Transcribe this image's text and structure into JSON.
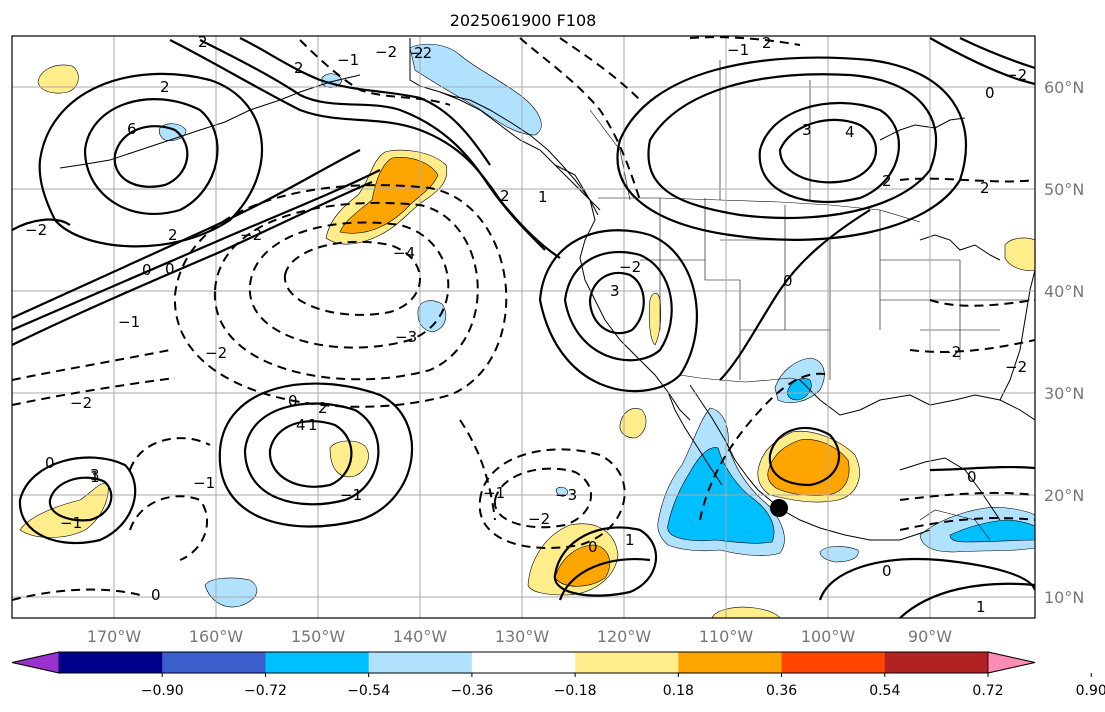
{
  "title": "2025061900 F108",
  "map": {
    "lat_labels": [
      "60°N",
      "50°N",
      "40°N",
      "30°N",
      "20°N",
      "10°N"
    ],
    "lon_labels": [
      "170°W",
      "160°W",
      "150°W",
      "140°W",
      "130°W",
      "120°W",
      "110°W",
      "100°W",
      "90°W"
    ],
    "marker": {
      "lon": -105.2,
      "lat": 18.9,
      "color": "#000000"
    }
  },
  "colorbar": {
    "colors": [
      "#9932cc",
      "#00008b",
      "#3a5fcd",
      "#00bfff",
      "#b0e2ff",
      "#ffffff",
      "#ffec8b",
      "#ffa500",
      "#ff4500",
      "#b22222",
      "#ff8cb4"
    ],
    "tick_labels": [
      "−0.90",
      "−0.72",
      "−0.54",
      "−0.36",
      "−0.18",
      "0.18",
      "0.36",
      "0.54",
      "0.72",
      "0.90"
    ]
  },
  "contour_labels": [
    "6",
    "4",
    "3",
    "2",
    "2",
    "1",
    "0",
    "0",
    "−1",
    "−2",
    "−2",
    "−3",
    "−4",
    "−2",
    "2",
    "−2",
    "−2",
    "2",
    "2",
    "−1",
    "3",
    "1",
    "−1",
    "−2",
    "2",
    "−1",
    "0",
    "1",
    "−2",
    "−3",
    "0",
    "0",
    "−1",
    "1",
    "0",
    "−1",
    "0",
    "−2",
    "0",
    "0",
    "2",
    "−2",
    "2",
    "0",
    "−1",
    "2",
    "−2",
    "3",
    "4",
    "2",
    "−2",
    "1"
  ]
}
